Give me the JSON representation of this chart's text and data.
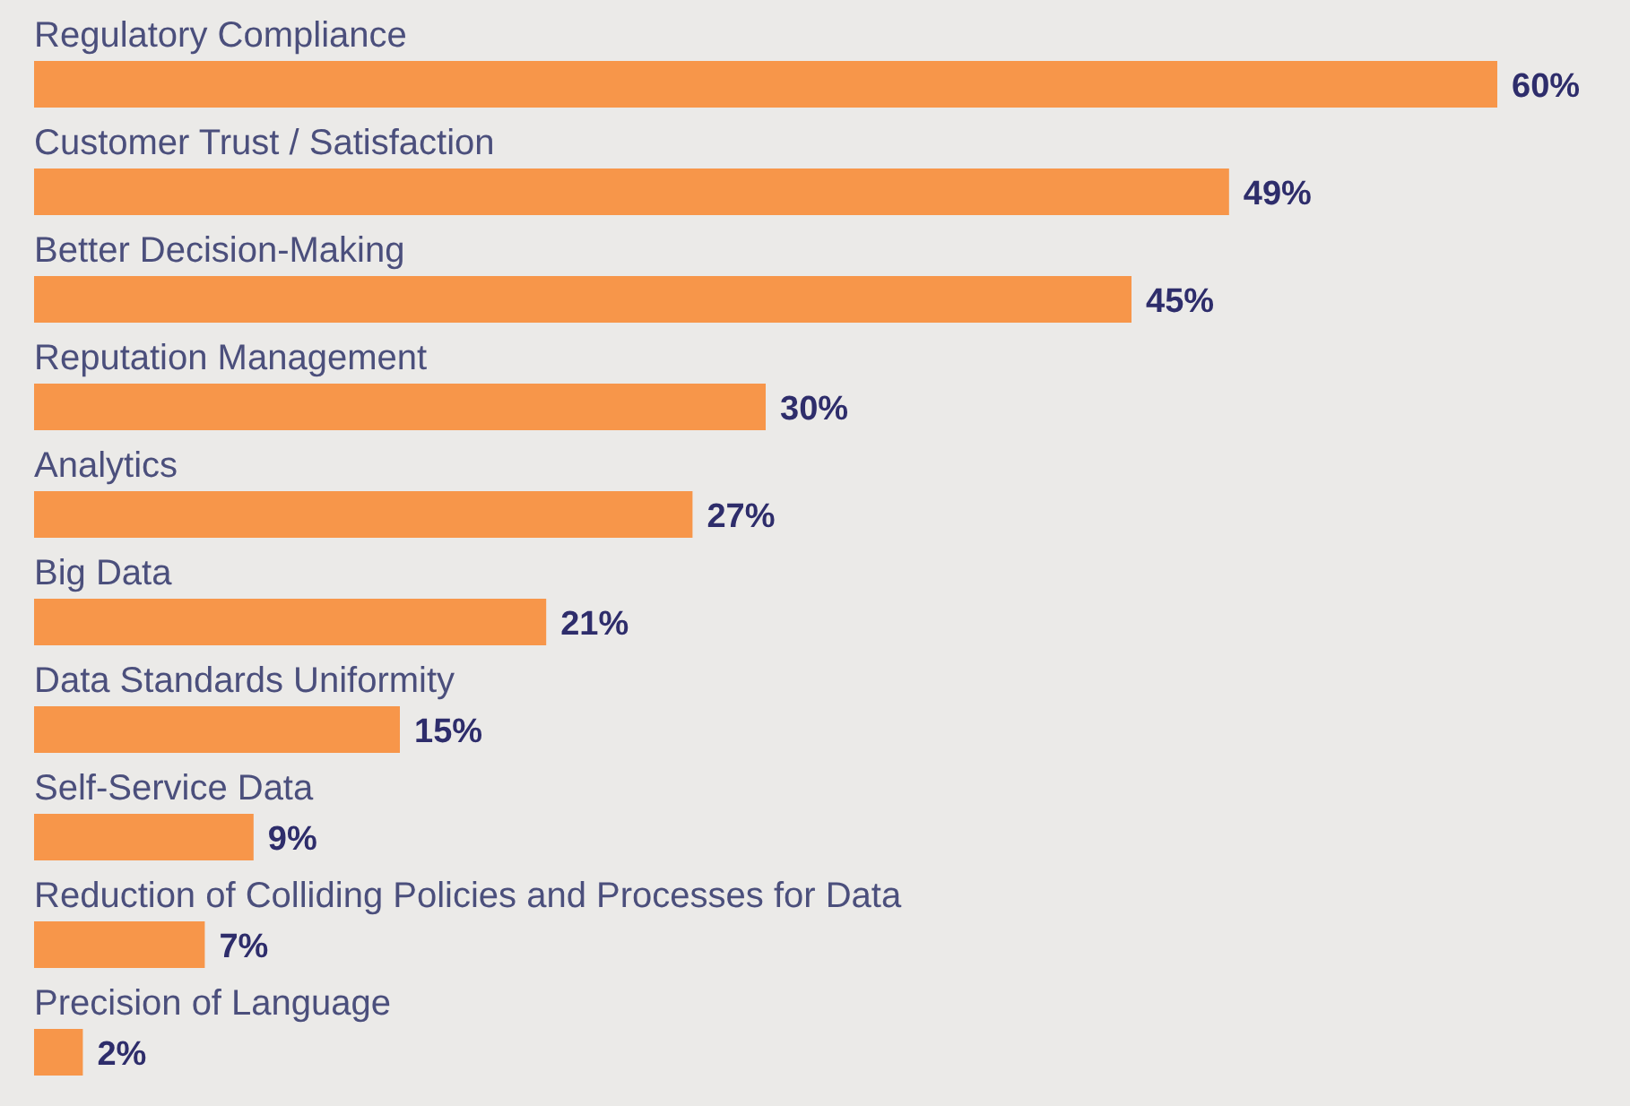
{
  "chart_data": {
    "type": "bar",
    "orientation": "horizontal",
    "categories": [
      "Regulatory Compliance",
      "Customer Trust / Satisfaction",
      "Better Decision-Making",
      "Reputation Management",
      "Analytics",
      "Big Data",
      "Data Standards Uniformity",
      "Self-Service Data",
      "Reduction of Colliding Policies and Processes for Data",
      "Precision of Language"
    ],
    "values": [
      60,
      49,
      45,
      30,
      27,
      21,
      15,
      9,
      7,
      2
    ],
    "value_labels": [
      "60%",
      "49%",
      "45%",
      "30%",
      "27%",
      "21%",
      "15%",
      "9%",
      "7%",
      "2%"
    ],
    "color": "#f7964a"
  }
}
